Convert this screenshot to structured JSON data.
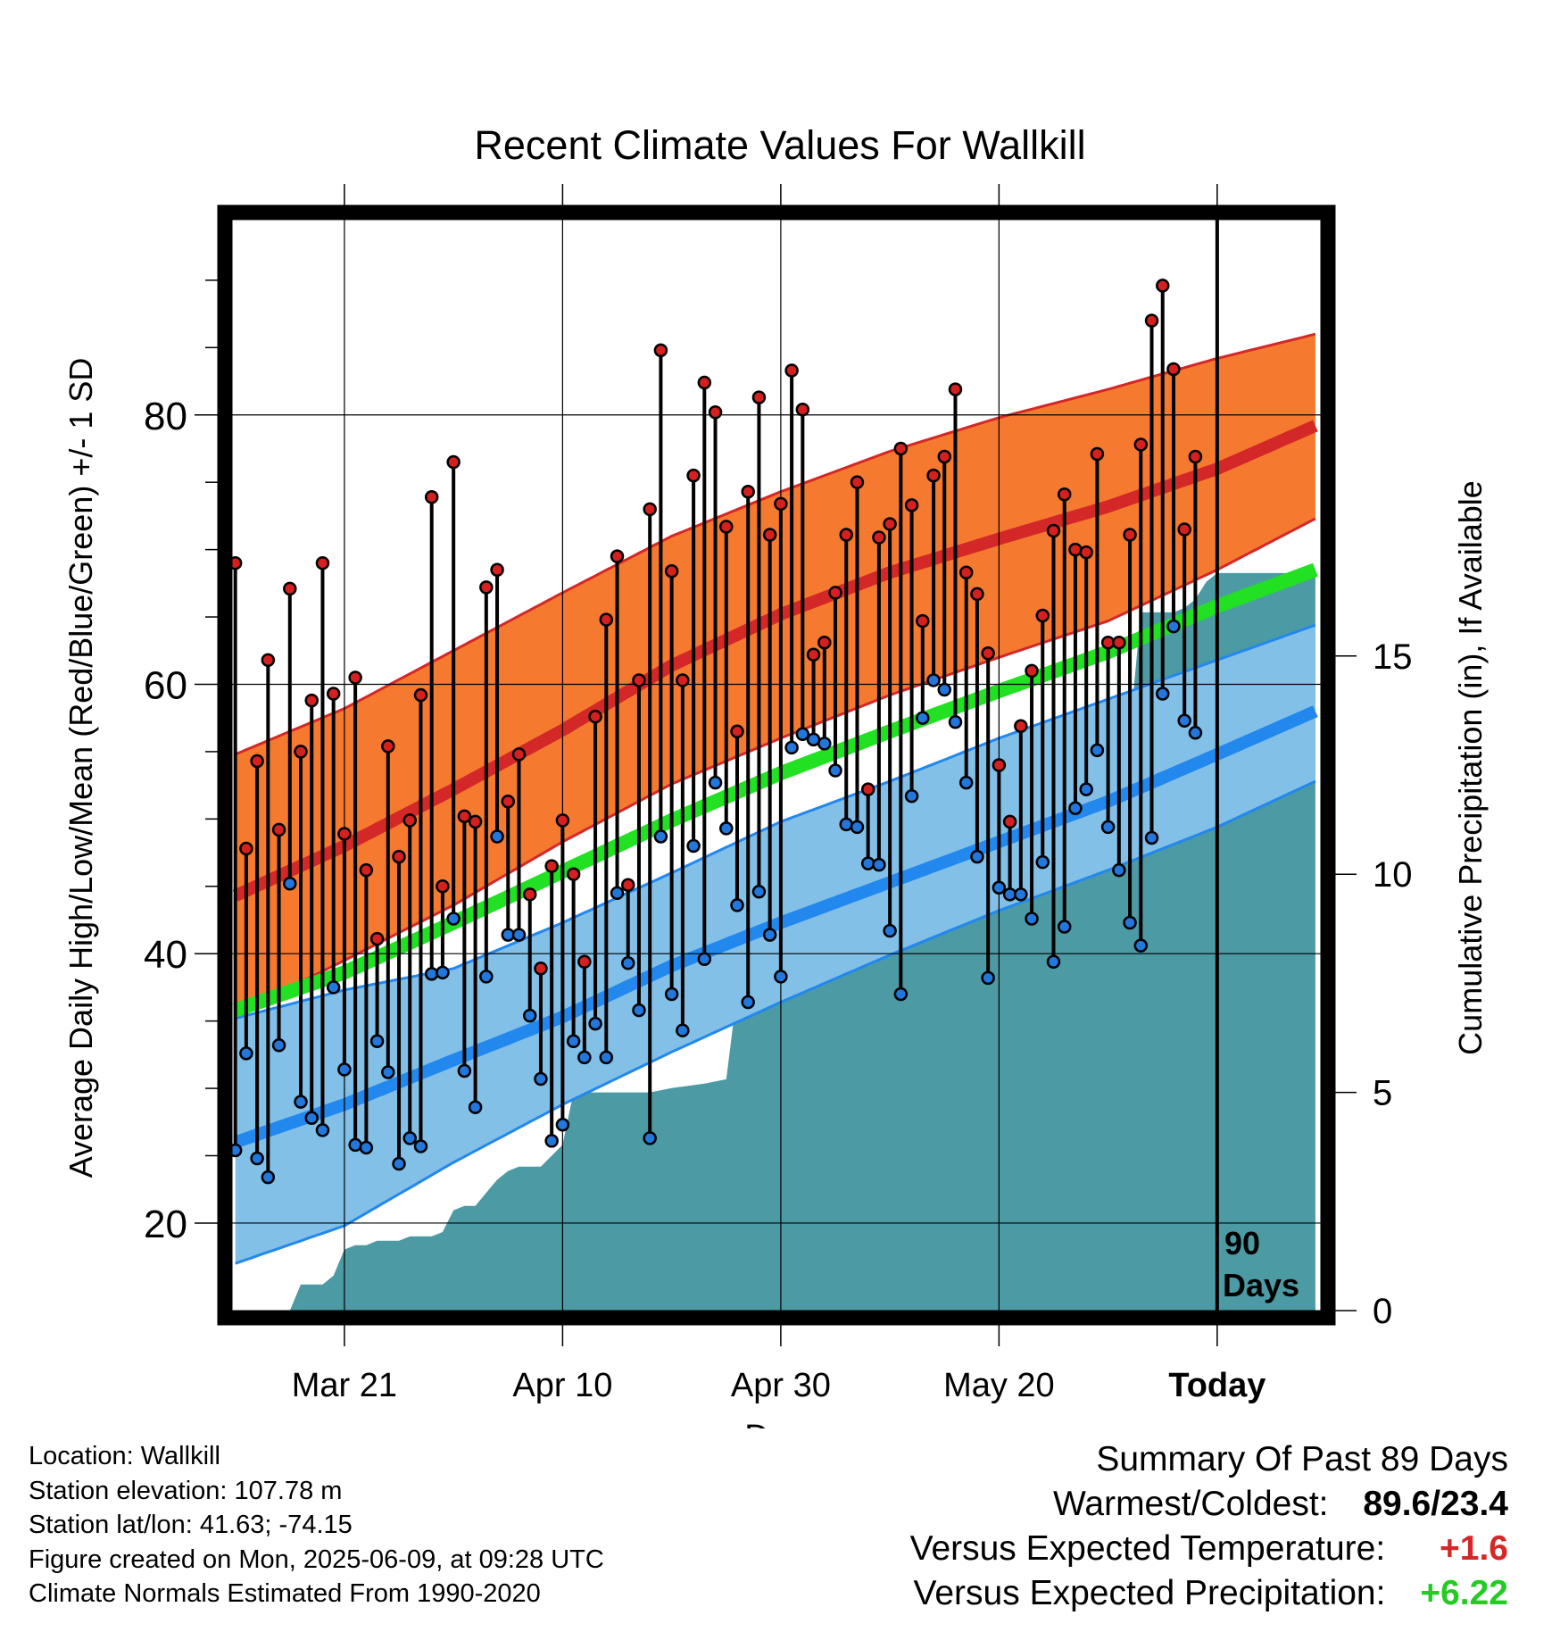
{
  "chart_data": {
    "type": "line",
    "title": "Recent Climate Values For Wallkill",
    "xlabel": "Day",
    "ylabel_left": "Average Daily High/Low/Mean (Red/Blue/Green) +/- 1 SD",
    "ylabel_right": "Cumulative Precipitation (in), If Available",
    "x_tick_labels": [
      "Mar 21",
      "Apr 10",
      "Apr 30",
      "May 20",
      "Today"
    ],
    "x_tick_days": [
      10,
      30,
      50,
      70,
      90
    ],
    "xlim_days": [
      -0.3,
      99.5
    ],
    "ylim_left": [
      13.5,
      94.5
    ],
    "yticks_left": [
      20,
      40,
      60,
      80
    ],
    "ylim_right": [
      0,
      25
    ],
    "yticks_right": [
      0,
      5,
      10,
      15
    ],
    "today_marker": {
      "day": 90,
      "label_line1": "90",
      "label_line2": "Days"
    },
    "series_colors": {
      "high_band": "#f57a30",
      "high_mean": "#d42828",
      "mean_line": "#22e022",
      "low_band": "#82c0e8",
      "low_mean": "#2288ee",
      "precip": "#4b9aa4",
      "obs_high_dot": "#d62020",
      "obs_low_dot": "#2277dd"
    },
    "normal_high_mean": {
      "days": [
        0,
        10,
        20,
        30,
        40,
        50,
        60,
        70,
        80,
        90,
        99
      ],
      "values": [
        44.3,
        48.0,
        52.2,
        56.6,
        61.4,
        65.2,
        68.3,
        70.8,
        73.2,
        76.0,
        79.2
      ]
    },
    "normal_high_upper": {
      "days": [
        0,
        10,
        20,
        30,
        40,
        50,
        60,
        70,
        80,
        90,
        99
      ],
      "values": [
        54.8,
        58.2,
        62.5,
        66.8,
        71.0,
        74.3,
        77.3,
        79.8,
        81.9,
        84.2,
        86.0
      ]
    },
    "normal_high_lower": {
      "days": [
        0,
        10,
        20,
        30,
        40,
        50,
        60,
        70,
        80,
        90,
        99
      ],
      "values": [
        35.5,
        39.5,
        43.6,
        48.3,
        52.6,
        56.0,
        59.2,
        62.0,
        64.7,
        68.5,
        72.3
      ]
    },
    "normal_mean": {
      "days": [
        0,
        10,
        20,
        30,
        40,
        50,
        60,
        70,
        80,
        90,
        99
      ],
      "values": [
        35.8,
        38.6,
        42.3,
        46.1,
        49.9,
        53.4,
        56.5,
        59.5,
        62.4,
        65.8,
        68.5
      ]
    },
    "normal_low_mean": {
      "days": [
        0,
        10,
        20,
        30,
        40,
        50,
        60,
        70,
        80,
        90,
        99
      ],
      "values": [
        26.0,
        28.8,
        32.1,
        35.3,
        39.1,
        42.3,
        45.3,
        48.3,
        51.3,
        54.8,
        58.0
      ]
    },
    "normal_low_upper": {
      "days": [
        0,
        10,
        20,
        30,
        40,
        50,
        60,
        70,
        80,
        90,
        99
      ],
      "values": [
        35.2,
        37.3,
        38.9,
        42.3,
        46.0,
        49.8,
        52.8,
        56.0,
        58.9,
        61.8,
        64.4
      ]
    },
    "normal_low_lower": {
      "days": [
        0,
        10,
        20,
        30,
        40,
        50,
        60,
        70,
        80,
        90,
        99
      ],
      "values": [
        17.0,
        19.8,
        24.5,
        28.8,
        32.7,
        36.4,
        39.9,
        43.2,
        46.2,
        49.4,
        52.8
      ]
    },
    "precip_cumulative": {
      "days": [
        5,
        6,
        8,
        9,
        10,
        11,
        12,
        13,
        15,
        16,
        17,
        18,
        19,
        20,
        21,
        22,
        23,
        24,
        25,
        26,
        28,
        30,
        31,
        32,
        33,
        35,
        38,
        40,
        43,
        45,
        46,
        48,
        49,
        50,
        51,
        53,
        54,
        55,
        56,
        57,
        58,
        59,
        60,
        61,
        62,
        63,
        64,
        67,
        68,
        69,
        70,
        71,
        72,
        73,
        74,
        76,
        79,
        80,
        81,
        82,
        83,
        86,
        87,
        88,
        89,
        90,
        99
      ],
      "values": [
        0.0,
        0.6,
        0.6,
        0.8,
        1.4,
        1.5,
        1.5,
        1.6,
        1.6,
        1.7,
        1.7,
        1.7,
        1.8,
        2.3,
        2.4,
        2.4,
        2.7,
        3.0,
        3.2,
        3.3,
        3.3,
        3.8,
        5.0,
        5.0,
        5.0,
        5.0,
        5.0,
        5.1,
        5.2,
        5.3,
        7.3,
        7.3,
        7.4,
        7.4,
        7.4,
        7.5,
        8.3,
        8.8,
        9.0,
        9.2,
        10.0,
        11.4,
        11.4,
        11.4,
        11.4,
        11.7,
        11.7,
        12.0,
        12.0,
        12.1,
        12.1,
        12.3,
        12.6,
        12.9,
        12.9,
        13.0,
        13.0,
        13.1,
        13.1,
        13.3,
        16.0,
        16.0,
        16.1,
        16.3,
        16.7,
        16.9,
        16.9
      ]
    },
    "obs_high": [
      69.0,
      47.8,
      54.3,
      61.8,
      49.2,
      67.1,
      55.0,
      58.8,
      69.0,
      59.3,
      48.9,
      60.5,
      46.2,
      41.1,
      55.4,
      47.2,
      49.9,
      59.2,
      73.9,
      45.0,
      76.5,
      50.2,
      49.8,
      67.2,
      68.5,
      51.3,
      54.8,
      44.4,
      38.9,
      46.5,
      49.9,
      45.9,
      39.4,
      57.6,
      64.8,
      69.5,
      45.1,
      60.3,
      73.0,
      84.8,
      68.4,
      60.3,
      75.5,
      82.4,
      80.2,
      71.7,
      56.5,
      74.3,
      81.3,
      71.1,
      73.4,
      83.3,
      80.4,
      62.2,
      63.1,
      66.8,
      71.1,
      75.0,
      52.2,
      70.9,
      71.9,
      77.5,
      73.3,
      64.7,
      75.5,
      76.9,
      81.9,
      68.3,
      66.7,
      62.3,
      54.0,
      49.8,
      56.9,
      61.0,
      65.1,
      71.4,
      74.1,
      70.0,
      69.8,
      77.1,
      63.1,
      63.1,
      71.1,
      77.8,
      87.0,
      89.6,
      83.4,
      71.5,
      76.9
    ],
    "obs_low": [
      25.4,
      32.6,
      24.8,
      23.4,
      33.2,
      45.2,
      29.0,
      27.8,
      26.9,
      37.5,
      31.4,
      25.8,
      25.6,
      33.5,
      31.2,
      24.4,
      26.3,
      25.7,
      38.5,
      38.6,
      42.6,
      31.3,
      28.6,
      38.3,
      48.7,
      41.4,
      41.4,
      35.4,
      30.7,
      26.1,
      27.3,
      33.5,
      32.3,
      34.8,
      32.3,
      44.5,
      39.3,
      35.8,
      26.3,
      48.7,
      37.0,
      34.3,
      48.0,
      39.6,
      52.7,
      49.3,
      43.6,
      36.4,
      44.6,
      41.4,
      38.3,
      55.3,
      56.3,
      55.9,
      55.6,
      53.6,
      49.6,
      49.4,
      46.7,
      46.6,
      41.7,
      37.0,
      51.7,
      57.5,
      60.3,
      59.6,
      57.2,
      52.7,
      47.2,
      38.2,
      44.9,
      44.4,
      44.4,
      42.6,
      46.8,
      39.4,
      42.0,
      50.8,
      52.2,
      55.1,
      49.4,
      46.2,
      42.3,
      40.6,
      48.6,
      59.3,
      64.3,
      57.3,
      56.4
    ]
  },
  "summary": {
    "heading": "Summary Of Past 89 Days",
    "warm_label": "Warmest/Coldest:",
    "warm_value": "89.6/23.4",
    "temp_label": "Versus Expected Temperature:",
    "temp_value": "+1.6",
    "precip_label": "Versus Expected Precipitation:",
    "precip_value": "+6.22"
  },
  "footer": {
    "location": "Location: Wallkill",
    "elevation": "Station elevation: 107.78 m",
    "latlon": "Station lat/lon: 41.63; -74.15",
    "created": "Figure created on Mon, 2025-06-09, at 09:28 UTC",
    "normals": "Climate Normals Estimated From 1990-2020"
  }
}
